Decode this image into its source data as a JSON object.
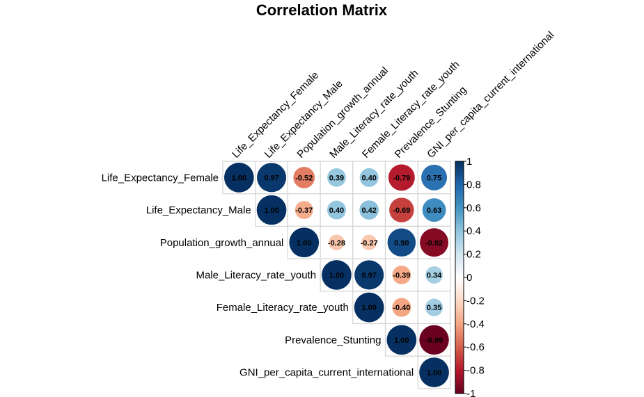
{
  "chart_data": {
    "type": "heatmap",
    "subtype": "correlation-circle-upper",
    "title": "Correlation Matrix",
    "variables": [
      "Life_Expectancy_Female",
      "Life_Expectancy_Male",
      "Population_growth_annual",
      "Male_Literacy_rate_youth",
      "Female_Literacy_rate_youth",
      "Prevalence_Stunting",
      "GNI_per_capita_current_international"
    ],
    "matrix": [
      [
        1.0,
        0.97,
        -0.52,
        0.39,
        0.4,
        -0.79,
        0.75
      ],
      [
        null,
        1.0,
        -0.37,
        0.4,
        0.42,
        -0.69,
        0.63
      ],
      [
        null,
        null,
        1.0,
        -0.28,
        -0.27,
        0.9,
        -0.92
      ],
      [
        null,
        null,
        null,
        1.0,
        0.97,
        -0.39,
        0.34
      ],
      [
        null,
        null,
        null,
        null,
        1.0,
        -0.4,
        0.35
      ],
      [
        null,
        null,
        null,
        null,
        null,
        1.0,
        -0.99
      ],
      [
        null,
        null,
        null,
        null,
        null,
        null,
        1.0
      ]
    ],
    "colorbar": {
      "range": [
        -1,
        1
      ],
      "ticks": [
        "1",
        "0.8",
        "0.6",
        "0.4",
        "0.2",
        "0",
        "-0.2",
        "-0.4",
        "-0.6",
        "-0.8",
        "-1"
      ],
      "tick_values": [
        1,
        0.8,
        0.6,
        0.4,
        0.2,
        0,
        -0.2,
        -0.4,
        -0.6,
        -0.8,
        -1
      ],
      "colors": [
        "#67001F",
        "#B2182B",
        "#D6604D",
        "#F4A582",
        "#FDDBC7",
        "#FFFFFF",
        "#D1E5F0",
        "#92C5DE",
        "#4393C3",
        "#2166AC",
        "#053061"
      ]
    },
    "legend_position": "right",
    "grid": true
  }
}
